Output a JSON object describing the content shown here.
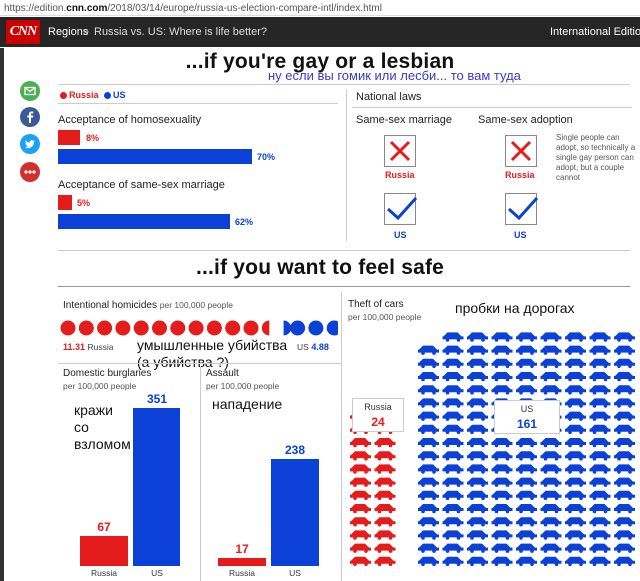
{
  "browser": {
    "url_prefix": "https://edition.",
    "url_domain": "cnn.com",
    "url_suffix": "/2018/03/14/europe/russia-us-election-compare-intl/index.html"
  },
  "nav": {
    "logo": "CNN",
    "regions": "Regions",
    "separator": "»",
    "crumb": "Russia vs. US: Where is life better?",
    "edition": "International Edition +"
  },
  "colors": {
    "russia": "#e51c1c",
    "us": "#0b41d6",
    "nav": "#262626"
  },
  "section1": {
    "title": "...if you're gay or a lesbian",
    "note": "ну если вы гомик или лесби... то вам туда",
    "legend": {
      "russia": "Russia",
      "us": "US"
    },
    "homosexuality": {
      "label": "Acceptance of homosexuality",
      "russia": "8%",
      "us": "70%",
      "russia_value": 8,
      "us_value": 70
    },
    "marriage": {
      "label": "Acceptance of same-sex marriage",
      "russia": "5%",
      "us": "62%",
      "russia_value": 5,
      "us_value": 62
    },
    "laws": {
      "title": "National laws",
      "marriage_title": "Same-sex marriage",
      "adoption_title": "Same-sex adoption",
      "russia": "Russia",
      "us": "US",
      "adoption_note": "Single people can adopt, so technically a single gay person can adopt, but a couple cannot"
    }
  },
  "section2": {
    "title": "...if you want to feel safe",
    "homicides": {
      "label": "Intentional homicides",
      "unit": "per 100,000 people",
      "russia_value": "11.31",
      "russia": "Russia",
      "us": "US",
      "us_value": "4.88",
      "note": "умышленные убийства\n(а убийства ?)"
    },
    "burglaries": {
      "label": "Domestic burglaries",
      "unit": "per 100,000 people",
      "russia": "Russia",
      "us": "US",
      "russia_value": 67,
      "us_value": 351,
      "note": "кражи\nсо\nвзломом"
    },
    "assault": {
      "label": "Assault",
      "unit": "per 100,000 people",
      "russia": "Russia",
      "us": "US",
      "russia_value": 17,
      "us_value": 238,
      "note": "нападение"
    },
    "cars": {
      "label": "Theft of cars",
      "unit": "per 100,000 people",
      "russia": "Russia",
      "us": "US",
      "russia_value": 24,
      "us_value": 161,
      "note": "пробки на дорогах"
    }
  },
  "share": [
    {
      "name": "email",
      "color": "#4caf50"
    },
    {
      "name": "facebook",
      "color": "#3b5998"
    },
    {
      "name": "twitter",
      "color": "#1da1f2"
    },
    {
      "name": "more",
      "color": "#d32f2f"
    }
  ]
}
